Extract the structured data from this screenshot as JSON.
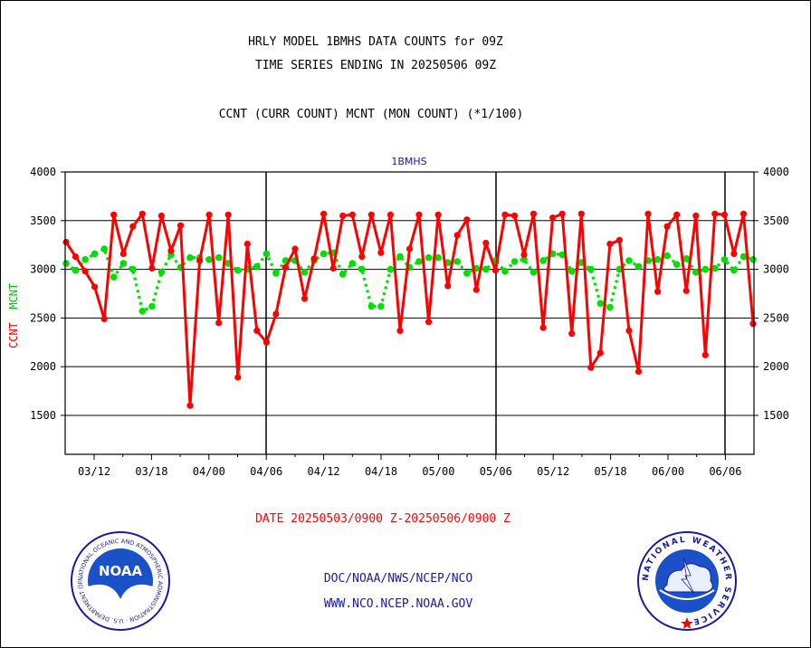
{
  "titles": {
    "line1": "HRLY MODEL 1BMHS DATA COUNTS for 09Z",
    "line2": "TIME SERIES ENDING IN 20250506 09Z",
    "line3": "CCNT (CURR COUNT) MCNT (MON COUNT) (*1/100)"
  },
  "series_label": "1BMHS",
  "ylabel_ccnt": "CCNT",
  "ylabel_mcnt": "MCNT",
  "date_range": "DATE 20250503/0900 Z-20250506/0900 Z",
  "footer": {
    "link1": "DOC/NOAA/NWS/NCEP/NCO",
    "link2": "WWW.NCO.NCEP.NOAA.GOV"
  },
  "logos": {
    "noaa_text": "NOAA",
    "noaa_ring": "NATIONAL OCEANIC AND ATMOSPHERIC ADMINISTRATION · U.S. DEPARTMENT OF COMMERCE",
    "nws_ring": "NATIONAL WEATHER SERVICE"
  },
  "colors": {
    "ccnt": "#ff0000",
    "mcnt": "#00e000",
    "accent": "#1a1aa6"
  },
  "chart_data": {
    "type": "line",
    "ylim": [
      1100,
      4000
    ],
    "y_ticks": [
      1500,
      2000,
      2500,
      3000,
      3500,
      4000
    ],
    "x_ticks": [
      "03/12",
      "03/18",
      "04/00",
      "04/06",
      "04/12",
      "04/18",
      "05/00",
      "05/06",
      "05/12",
      "05/18",
      "06/00",
      "06/06"
    ],
    "grid": true,
    "series": [
      {
        "name": "CCNT",
        "values": [
          3280,
          3130,
          2980,
          2820,
          2490,
          3560,
          3160,
          3440,
          3570,
          3010,
          3550,
          3190,
          3450,
          1600,
          3090,
          3560,
          2450,
          3560,
          1890,
          3260,
          2370,
          2250,
          2540,
          3020,
          3210,
          2700,
          3110,
          3570,
          3010,
          3550,
          3560,
          3130,
          3560,
          3170,
          3560,
          2370,
          3210,
          3560,
          2460,
          3560,
          2830,
          3350,
          3510,
          2790,
          3270,
          2990,
          3560,
          3550,
          3150,
          3570,
          2400,
          3530,
          3570,
          2340,
          3570,
          1990,
          2140,
          3260,
          3300,
          2370,
          1950,
          3570,
          2770,
          3440,
          3560,
          2780,
          3550,
          2120,
          3570,
          3560,
          3160,
          3570,
          2440
        ]
      },
      {
        "name": "MCNT",
        "values": [
          3060,
          2990,
          3100,
          3160,
          3210,
          2920,
          3060,
          3000,
          2570,
          2620,
          2970,
          3150,
          3020,
          3120,
          3120,
          3100,
          3120,
          3060,
          2990,
          3000,
          3030,
          3160,
          2960,
          3090,
          3090,
          2970,
          3090,
          3160,
          3170,
          2950,
          3060,
          3000,
          2620,
          2620,
          3000,
          3130,
          3020,
          3080,
          3120,
          3120,
          3070,
          3080,
          2960,
          3010,
          3000,
          3090,
          2980,
          3080,
          3100,
          2970,
          3090,
          3160,
          3150,
          2980,
          3070,
          3000,
          2650,
          2610,
          3000,
          3090,
          3030,
          3090,
          3100,
          3140,
          3050,
          3110,
          2970,
          3000,
          3010,
          3100,
          2990,
          3130,
          3100
        ]
      }
    ]
  }
}
